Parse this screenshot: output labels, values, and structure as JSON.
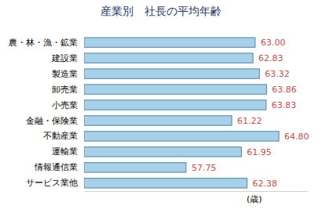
{
  "chart_data": {
    "type": "bar",
    "title": "産業別　社長の平均年齢",
    "orientation": "horizontal",
    "categories": [
      "農・林・漁・鉱業",
      "建設業",
      "製造業",
      "卸売業",
      "小売業",
      "金融・保険業",
      "不動産業",
      "運輸業",
      "情報通信業",
      "サービス業他"
    ],
    "values": [
      63.0,
      62.83,
      63.32,
      63.86,
      63.83,
      61.22,
      64.8,
      61.95,
      57.75,
      62.38
    ],
    "value_labels": [
      "63.00",
      "62.83",
      "63.32",
      "63.86",
      "63.83",
      "61.22",
      "64.80",
      "61.95",
      "57.75",
      "62.38"
    ],
    "xlabel": "(歳)",
    "xlim": [
      50,
      67
    ],
    "tick_labels": "y",
    "data_labels": true,
    "grid": false,
    "color": "#a8d0e6"
  }
}
